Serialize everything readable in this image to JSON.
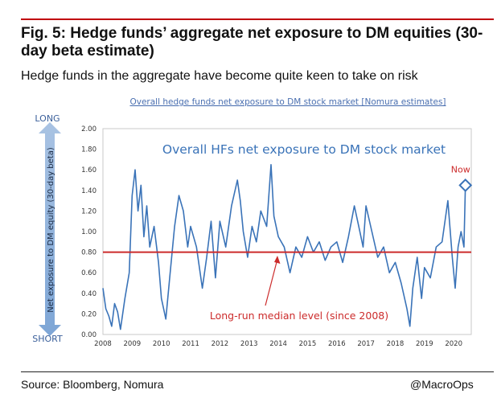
{
  "header": {
    "title": "Fig. 5: Hedge funds’ aggregate net exposure to DM equities (30-day beta estimate)",
    "subtitle": "Hedge funds in the aggregate have become quite keen to take on risk"
  },
  "footer": {
    "source": "Source: Bloomberg, Nomura",
    "credit": "@MacroOps"
  },
  "colors": {
    "series": "#3a73b8",
    "median": "#cc2b2b",
    "annotation_text": "#cc2b2b",
    "title_link": "#4a6fb0",
    "arrow": "#9bb7da",
    "rule": "#c0000a"
  },
  "chart_data": {
    "type": "line",
    "title": "Overall hedge funds net exposure to DM stock market [Nomura estimates]",
    "inner_title": "Overall HFs net exposure to DM stock market",
    "ylabel": "Net exposure to DM equity (30-day beta)",
    "long_label": "LONG",
    "short_label": "SHORT",
    "xlim": [
      2008.0,
      2020.6
    ],
    "ylim": [
      0.0,
      2.0
    ],
    "y_ticks": [
      "0.00",
      "0.20",
      "0.40",
      "0.60",
      "0.80",
      "1.00",
      "1.20",
      "1.40",
      "1.60",
      "1.80",
      "2.00"
    ],
    "x_ticks": [
      "2008",
      "2009",
      "2010",
      "2011",
      "2012",
      "2013",
      "2014",
      "2015",
      "2016",
      "2017",
      "2018",
      "2019",
      "2020"
    ],
    "median": {
      "value": 0.8,
      "label": "Long-run median level (since 2008)"
    },
    "now": {
      "x": 2020.4,
      "y": 1.45,
      "label": "Now"
    },
    "series": [
      {
        "name": "Overall HFs net exposure",
        "x": [
          2008.0,
          2008.1,
          2008.2,
          2008.3,
          2008.4,
          2008.5,
          2008.6,
          2008.75,
          2008.9,
          2009.0,
          2009.1,
          2009.2,
          2009.3,
          2009.4,
          2009.5,
          2009.6,
          2009.75,
          2009.9,
          2010.0,
          2010.15,
          2010.3,
          2010.45,
          2010.6,
          2010.75,
          2010.9,
          2011.0,
          2011.2,
          2011.4,
          2011.55,
          2011.7,
          2011.85,
          2012.0,
          2012.2,
          2012.4,
          2012.6,
          2012.7,
          2012.8,
          2012.95,
          2013.1,
          2013.25,
          2013.4,
          2013.6,
          2013.75,
          2013.85,
          2014.0,
          2014.2,
          2014.4,
          2014.6,
          2014.8,
          2015.0,
          2015.2,
          2015.4,
          2015.6,
          2015.8,
          2016.0,
          2016.2,
          2016.4,
          2016.6,
          2016.75,
          2016.9,
          2017.0,
          2017.2,
          2017.4,
          2017.6,
          2017.8,
          2018.0,
          2018.2,
          2018.4,
          2018.5,
          2018.6,
          2018.75,
          2018.9,
          2019.0,
          2019.2,
          2019.4,
          2019.6,
          2019.8,
          2019.95,
          2020.05,
          2020.15,
          2020.25,
          2020.35,
          2020.4
        ],
        "values": [
          0.45,
          0.25,
          0.18,
          0.08,
          0.3,
          0.22,
          0.05,
          0.35,
          0.6,
          1.35,
          1.6,
          1.2,
          1.45,
          0.95,
          1.25,
          0.85,
          1.05,
          0.7,
          0.35,
          0.15,
          0.6,
          1.05,
          1.35,
          1.2,
          0.85,
          1.05,
          0.85,
          0.45,
          0.75,
          1.1,
          0.55,
          1.1,
          0.85,
          1.25,
          1.5,
          1.3,
          1.0,
          0.75,
          1.05,
          0.9,
          1.2,
          1.05,
          1.65,
          1.15,
          0.95,
          0.85,
          0.6,
          0.85,
          0.75,
          0.95,
          0.8,
          0.9,
          0.72,
          0.85,
          0.9,
          0.7,
          0.95,
          1.25,
          1.05,
          0.85,
          1.25,
          1.0,
          0.75,
          0.85,
          0.6,
          0.7,
          0.5,
          0.25,
          0.08,
          0.45,
          0.75,
          0.35,
          0.65,
          0.55,
          0.85,
          0.9,
          1.3,
          0.75,
          0.45,
          0.85,
          1.0,
          0.85,
          1.45
        ]
      }
    ]
  }
}
